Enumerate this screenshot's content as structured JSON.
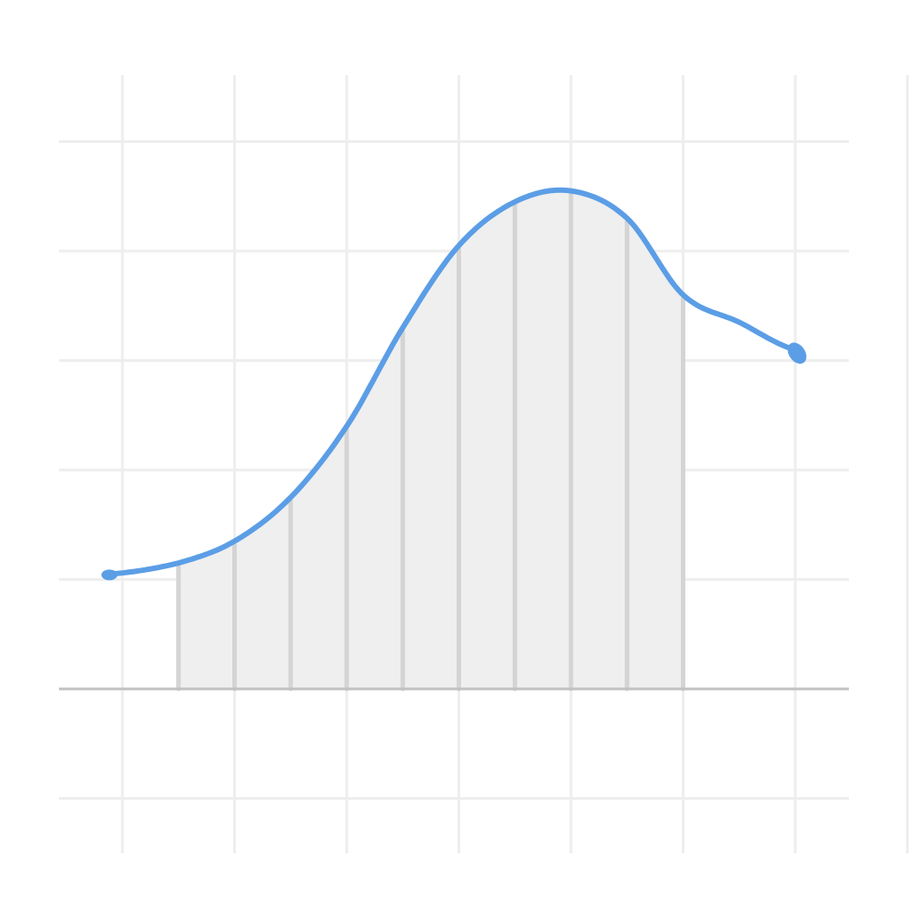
{
  "chart_data": {
    "type": "line",
    "title": "",
    "xlabel": "",
    "ylabel": "",
    "grid": true,
    "legend": "none",
    "xlim": [
      0,
      7
    ],
    "ylim": [
      -1,
      5
    ],
    "curve": {
      "x": [
        -0.1,
        0.5,
        1.0,
        1.5,
        2.0,
        2.5,
        3.0,
        3.5,
        4.0,
        4.5,
        5.0,
        5.5,
        6.0
      ],
      "y": [
        1.05,
        1.15,
        1.35,
        1.75,
        2.4,
        3.3,
        4.05,
        4.45,
        4.55,
        4.3,
        3.6,
        3.35,
        3.1
      ]
    },
    "shaded_region": {
      "x_start": 0.5,
      "x_end": 5.0,
      "strip_edges": [
        0.5,
        1.0,
        1.5,
        2.0,
        2.5,
        3.0,
        3.5,
        4.0,
        4.5,
        5.0
      ]
    },
    "colors": {
      "curve": "#5b9ee6",
      "fill": "#efefef",
      "strip_line": "#d4d4d4",
      "grid": "#eeeeee",
      "baseline": "#c2c2c2"
    }
  }
}
